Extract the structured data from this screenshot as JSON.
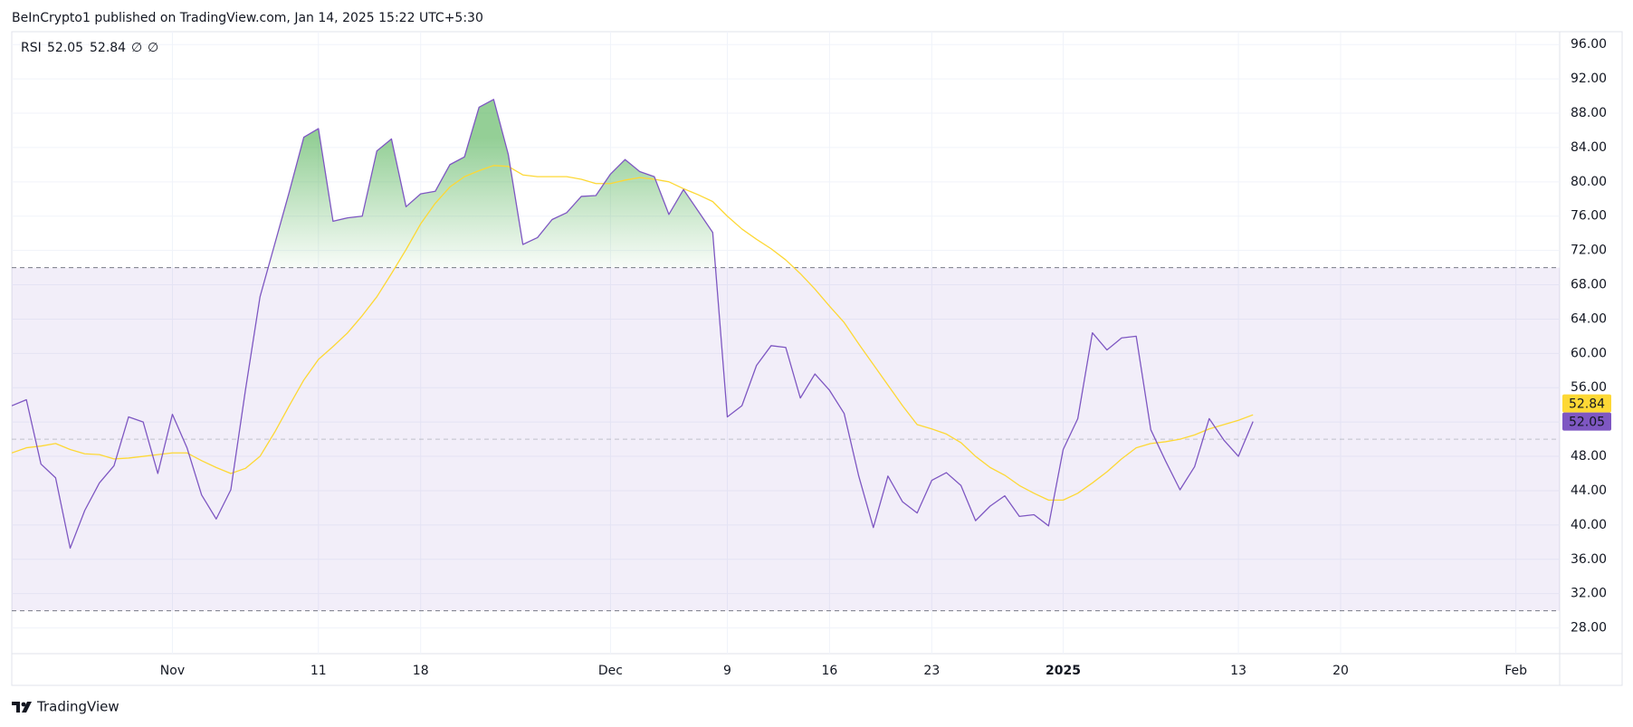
{
  "header": "BeInCrypto1 published on TradingView.com, Jan 14, 2025 15:22 UTC+5:30",
  "footer": "TradingView",
  "chart_data": {
    "type": "line",
    "indicator": "RSI",
    "legend_extras": [
      "∅",
      "∅"
    ],
    "x": [
      "2024-10-21",
      "2024-10-22",
      "2024-10-23",
      "2024-10-24",
      "2024-10-25",
      "2024-10-26",
      "2024-10-27",
      "2024-10-28",
      "2024-10-29",
      "2024-10-30",
      "2024-10-31",
      "2024-11-01",
      "2024-11-02",
      "2024-11-03",
      "2024-11-04",
      "2024-11-05",
      "2024-11-06",
      "2024-11-07",
      "2024-11-08",
      "2024-11-09",
      "2024-11-10",
      "2024-11-11",
      "2024-11-12",
      "2024-11-13",
      "2024-11-14",
      "2024-11-15",
      "2024-11-16",
      "2024-11-17",
      "2024-11-18",
      "2024-11-19",
      "2024-11-20",
      "2024-11-21",
      "2024-11-22",
      "2024-11-23",
      "2024-11-24",
      "2024-11-25",
      "2024-11-26",
      "2024-11-27",
      "2024-11-28",
      "2024-11-29",
      "2024-11-30",
      "2024-12-01",
      "2024-12-02",
      "2024-12-03",
      "2024-12-04",
      "2024-12-05",
      "2024-12-06",
      "2024-12-07",
      "2024-12-08",
      "2024-12-09",
      "2024-12-10",
      "2024-12-11",
      "2024-12-12",
      "2024-12-13",
      "2024-12-14",
      "2024-12-15",
      "2024-12-16",
      "2024-12-17",
      "2024-12-18",
      "2024-12-19",
      "2024-12-20",
      "2024-12-21",
      "2024-12-22",
      "2024-12-23",
      "2024-12-24",
      "2024-12-25",
      "2024-12-26",
      "2024-12-27",
      "2024-12-28",
      "2024-12-29",
      "2024-12-30",
      "2024-12-31",
      "2025-01-01",
      "2025-01-02",
      "2025-01-03",
      "2025-01-04",
      "2025-01-05",
      "2025-01-06",
      "2025-01-07",
      "2025-01-08",
      "2025-01-09",
      "2025-01-10",
      "2025-01-11",
      "2025-01-12",
      "2025-01-13",
      "2025-01-14"
    ],
    "series": [
      {
        "color": "#7e57c2",
        "values": [
          53.9,
          54.6,
          47.1,
          45.5,
          37.3,
          41.7,
          44.9,
          46.9,
          52.6,
          52.0,
          46.0,
          52.9,
          49.0,
          43.5,
          40.7,
          44.1,
          55.7,
          66.6,
          72.7,
          78.8,
          85.2,
          86.2,
          75.4,
          75.8,
          76.0,
          83.6,
          85.0,
          77.1,
          78.6,
          78.9,
          82.0,
          82.9,
          88.7,
          89.6,
          83.2,
          72.7,
          73.5,
          75.6,
          76.4,
          78.3,
          78.4,
          80.9,
          82.6,
          81.2,
          80.6,
          76.2,
          79.1,
          76.6,
          74.1,
          52.6,
          53.9,
          58.6,
          60.9,
          60.7,
          54.8,
          57.6,
          55.7,
          53.0,
          45.7,
          39.7,
          45.7,
          42.7,
          41.4,
          45.2,
          46.1,
          44.6,
          40.5,
          42.2,
          43.4,
          41.0,
          41.2,
          39.9,
          48.8,
          52.4,
          62.4,
          60.4,
          61.8,
          62.0,
          51.1,
          47.5,
          44.1,
          46.8,
          52.4,
          49.9,
          48.0,
          52.05
        ]
      },
      {
        "color": "#fdd835",
        "values": [
          48.4,
          49.0,
          49.2,
          49.5,
          48.8,
          48.3,
          48.2,
          47.7,
          47.8,
          48.0,
          48.2,
          48.4,
          48.4,
          47.5,
          46.7,
          46.0,
          46.6,
          48.0,
          50.8,
          53.9,
          56.9,
          59.3,
          60.8,
          62.4,
          64.4,
          66.6,
          69.3,
          72.1,
          75.1,
          77.5,
          79.4,
          80.6,
          81.3,
          81.9,
          81.8,
          80.8,
          80.6,
          80.6,
          80.6,
          80.3,
          79.8,
          79.8,
          80.2,
          80.5,
          80.3,
          80.0,
          79.2,
          78.5,
          77.7,
          76.0,
          74.5,
          73.3,
          72.2,
          70.9,
          69.3,
          67.5,
          65.5,
          63.6,
          61.1,
          58.7,
          56.3,
          53.9,
          51.7,
          51.2,
          50.6,
          49.6,
          48.0,
          46.7,
          45.8,
          44.6,
          43.7,
          42.9,
          42.9,
          43.7,
          44.9,
          46.2,
          47.7,
          49.0,
          49.5,
          49.7,
          50.0,
          50.5,
          51.2,
          51.7,
          52.2,
          52.84
        ]
      }
    ],
    "upper_band": 70,
    "middle_band": 50,
    "lower_band": 30,
    "band_color": "#7e57c2",
    "overbought_fill": "#4caf50",
    "xlim": [
      "2024-10-21",
      "2025-02-04"
    ],
    "xticks": [
      {
        "value": "2024-11-01",
        "label": "Nov"
      },
      {
        "value": "2024-11-11",
        "label": "11"
      },
      {
        "value": "2024-11-18",
        "label": "18"
      },
      {
        "value": "2024-12-01",
        "label": "Dec"
      },
      {
        "value": "2024-12-09",
        "label": "9"
      },
      {
        "value": "2024-12-16",
        "label": "16"
      },
      {
        "value": "2024-12-23",
        "label": "23"
      },
      {
        "value": "2025-01-01",
        "label": "2025"
      },
      {
        "value": "2025-01-13",
        "label": "13"
      },
      {
        "value": "2025-01-20",
        "label": "20"
      },
      {
        "value": "2025-02-01",
        "label": "Feb"
      }
    ],
    "ylim": [
      25,
      97.5
    ],
    "yticks": [
      {
        "value": 28,
        "label": "28.00"
      },
      {
        "value": 32,
        "label": "32.00"
      },
      {
        "value": 36,
        "label": "36.00"
      },
      {
        "value": 40,
        "label": "40.00"
      },
      {
        "value": 44,
        "label": "44.00"
      },
      {
        "value": 48,
        "label": "48.00"
      },
      {
        "value": 52,
        "label": "52.00"
      },
      {
        "value": 56,
        "label": "56.00"
      },
      {
        "value": 60,
        "label": "60.00"
      },
      {
        "value": 64,
        "label": "64.00"
      },
      {
        "value": 68,
        "label": "68.00"
      },
      {
        "value": 72,
        "label": "72.00"
      },
      {
        "value": 76,
        "label": "76.00"
      },
      {
        "value": 80,
        "label": "80.00"
      },
      {
        "value": 84,
        "label": "84.00"
      },
      {
        "value": 88,
        "label": "88.00"
      },
      {
        "value": 92,
        "label": "92.00"
      },
      {
        "value": 96,
        "label": "96.00"
      }
    ],
    "grid": true
  }
}
